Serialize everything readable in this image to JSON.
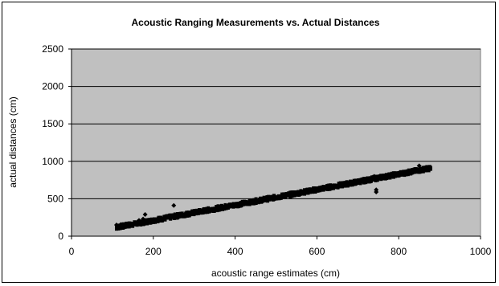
{
  "chart_data": {
    "type": "scatter",
    "title": "Acoustic Ranging Measurements vs. Actual Distances",
    "xlabel": "acoustic range estimates (cm)",
    "ylabel": "actual distances (cm)",
    "xlim": [
      0,
      1000
    ],
    "ylim": [
      0,
      2500
    ],
    "xticks": [
      "0",
      "200",
      "400",
      "600",
      "800",
      "1000"
    ],
    "yticks": [
      "0",
      "500",
      "1000",
      "1500",
      "2000",
      "2500"
    ],
    "grid": "horizontal",
    "legend": "none",
    "plot_background": "#c0c0c0",
    "marker_color": "#000000",
    "trend": {
      "x_range": [
        110,
        880
      ],
      "slope": 1.03,
      "intercept": 5
    },
    "points": [
      [
        110,
        150
      ],
      [
        120,
        155
      ],
      [
        130,
        150
      ],
      [
        140,
        160
      ],
      [
        150,
        158
      ],
      [
        160,
        165
      ],
      [
        165,
        210
      ],
      [
        175,
        230
      ],
      [
        180,
        290
      ],
      [
        190,
        200
      ],
      [
        200,
        220
      ],
      [
        210,
        230
      ],
      [
        220,
        240
      ],
      [
        240,
        260
      ],
      [
        250,
        410
      ],
      [
        260,
        280
      ],
      [
        280,
        300
      ],
      [
        300,
        320
      ],
      [
        320,
        340
      ],
      [
        340,
        360
      ],
      [
        360,
        385
      ],
      [
        380,
        400
      ],
      [
        400,
        420
      ],
      [
        420,
        445
      ],
      [
        440,
        460
      ],
      [
        460,
        480
      ],
      [
        480,
        505
      ],
      [
        500,
        520
      ],
      [
        520,
        545
      ],
      [
        540,
        560
      ],
      [
        560,
        580
      ],
      [
        580,
        600
      ],
      [
        600,
        620
      ],
      [
        620,
        650
      ],
      [
        640,
        660
      ],
      [
        660,
        690
      ],
      [
        680,
        700
      ],
      [
        700,
        720
      ],
      [
        720,
        740
      ],
      [
        745,
        620
      ],
      [
        745,
        590
      ],
      [
        740,
        800
      ],
      [
        760,
        790
      ],
      [
        780,
        810
      ],
      [
        800,
        830
      ],
      [
        820,
        850
      ],
      [
        840,
        870
      ],
      [
        850,
        940
      ],
      [
        860,
        890
      ],
      [
        875,
        910
      ]
    ]
  }
}
